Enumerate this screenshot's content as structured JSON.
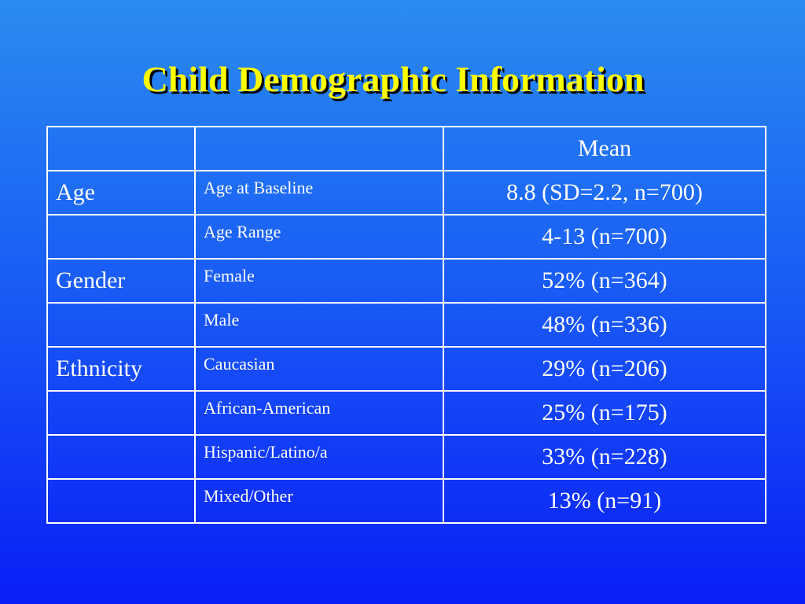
{
  "title": "Child Demographic Information",
  "table": {
    "header": [
      "",
      "",
      "Mean"
    ],
    "rows": [
      {
        "category": "Age",
        "item": "Age at Baseline",
        "value": "8.8 (SD=2.2, n=700)"
      },
      {
        "category": "",
        "item": "Age Range",
        "value": "4-13 (n=700)"
      },
      {
        "category": "Gender",
        "item": "Female",
        "value": "52% (n=364)"
      },
      {
        "category": "",
        "item": "Male",
        "value": "48% (n=336)"
      },
      {
        "category": "Ethnicity",
        "item": "Caucasian",
        "value": "29% (n=206)"
      },
      {
        "category": "",
        "item": "African-American",
        "value": "25% (n=175)"
      },
      {
        "category": "",
        "item": "Hispanic/Latino/a",
        "value": "33% (n=228)"
      },
      {
        "category": "",
        "item": "Mixed/Other",
        "value": "13% (n=91)"
      }
    ]
  },
  "colors": {
    "title": "#ffff00",
    "text": "#ffffff",
    "background_top": "#2a8cf0",
    "background_bottom": "#0a1ef7"
  }
}
